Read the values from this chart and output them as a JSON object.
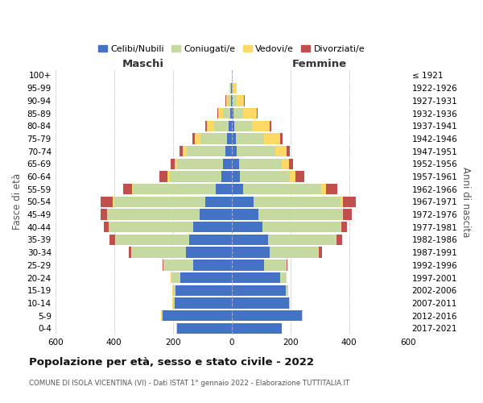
{
  "age_groups": [
    "0-4",
    "5-9",
    "10-14",
    "15-19",
    "20-24",
    "25-29",
    "30-34",
    "35-39",
    "40-44",
    "45-49",
    "50-54",
    "55-59",
    "60-64",
    "65-69",
    "70-74",
    "75-79",
    "80-84",
    "85-89",
    "90-94",
    "95-99",
    "100+"
  ],
  "birth_years": [
    "2017-2021",
    "2012-2016",
    "2007-2011",
    "2002-2006",
    "1997-2001",
    "1992-1996",
    "1987-1991",
    "1982-1986",
    "1977-1981",
    "1972-1976",
    "1967-1971",
    "1962-1966",
    "1957-1961",
    "1952-1956",
    "1947-1951",
    "1942-1946",
    "1937-1941",
    "1932-1936",
    "1927-1931",
    "1922-1926",
    "≤ 1921"
  ],
  "males": {
    "celibe": [
      185,
      235,
      195,
      190,
      175,
      130,
      155,
      145,
      130,
      110,
      90,
      55,
      35,
      30,
      22,
      15,
      10,
      5,
      3,
      2,
      0
    ],
    "coniugato": [
      2,
      3,
      5,
      10,
      30,
      100,
      185,
      250,
      285,
      310,
      310,
      280,
      175,
      155,
      130,
      90,
      50,
      25,
      10,
      3,
      0
    ],
    "vedovo": [
      0,
      1,
      1,
      1,
      1,
      1,
      1,
      2,
      2,
      3,
      5,
      5,
      8,
      10,
      15,
      20,
      25,
      15,
      5,
      2,
      0
    ],
    "divorziato": [
      0,
      1,
      1,
      1,
      2,
      5,
      10,
      18,
      18,
      22,
      42,
      28,
      28,
      12,
      10,
      8,
      5,
      3,
      2,
      0,
      0
    ]
  },
  "females": {
    "nubile": [
      170,
      240,
      195,
      185,
      165,
      110,
      130,
      125,
      105,
      90,
      75,
      40,
      28,
      25,
      18,
      15,
      10,
      5,
      3,
      2,
      0
    ],
    "coniugata": [
      2,
      2,
      3,
      8,
      20,
      75,
      165,
      230,
      265,
      285,
      295,
      265,
      170,
      145,
      130,
      95,
      60,
      35,
      15,
      5,
      0
    ],
    "vedova": [
      0,
      0,
      0,
      0,
      1,
      1,
      2,
      3,
      3,
      5,
      10,
      15,
      20,
      25,
      40,
      55,
      60,
      45,
      25,
      10,
      0
    ],
    "divorziata": [
      0,
      0,
      1,
      0,
      2,
      5,
      10,
      18,
      20,
      28,
      42,
      40,
      30,
      15,
      10,
      8,
      5,
      3,
      2,
      0,
      0
    ]
  },
  "colors": {
    "celibe": "#4472C4",
    "coniugato": "#C5D9A0",
    "vedovo": "#FFD966",
    "divorziato": "#C0504D"
  },
  "legend_labels": [
    "Celibi/Nubili",
    "Coniugati/e",
    "Vedovi/e",
    "Divorziati/e"
  ],
  "title": "Popolazione per età, sesso e stato civile - 2022",
  "subtitle": "COMUNE DI ISOLA VICENTINA (VI) - Dati ISTAT 1° gennaio 2022 - Elaborazione TUTTITALIA.IT",
  "ylabel_left": "Fasce di età",
  "ylabel_right": "Anni di nascita",
  "xlabel_left": "Maschi",
  "xlabel_right": "Femmine",
  "xlim": 600,
  "background_color": "#ffffff",
  "grid_color": "#cccccc"
}
